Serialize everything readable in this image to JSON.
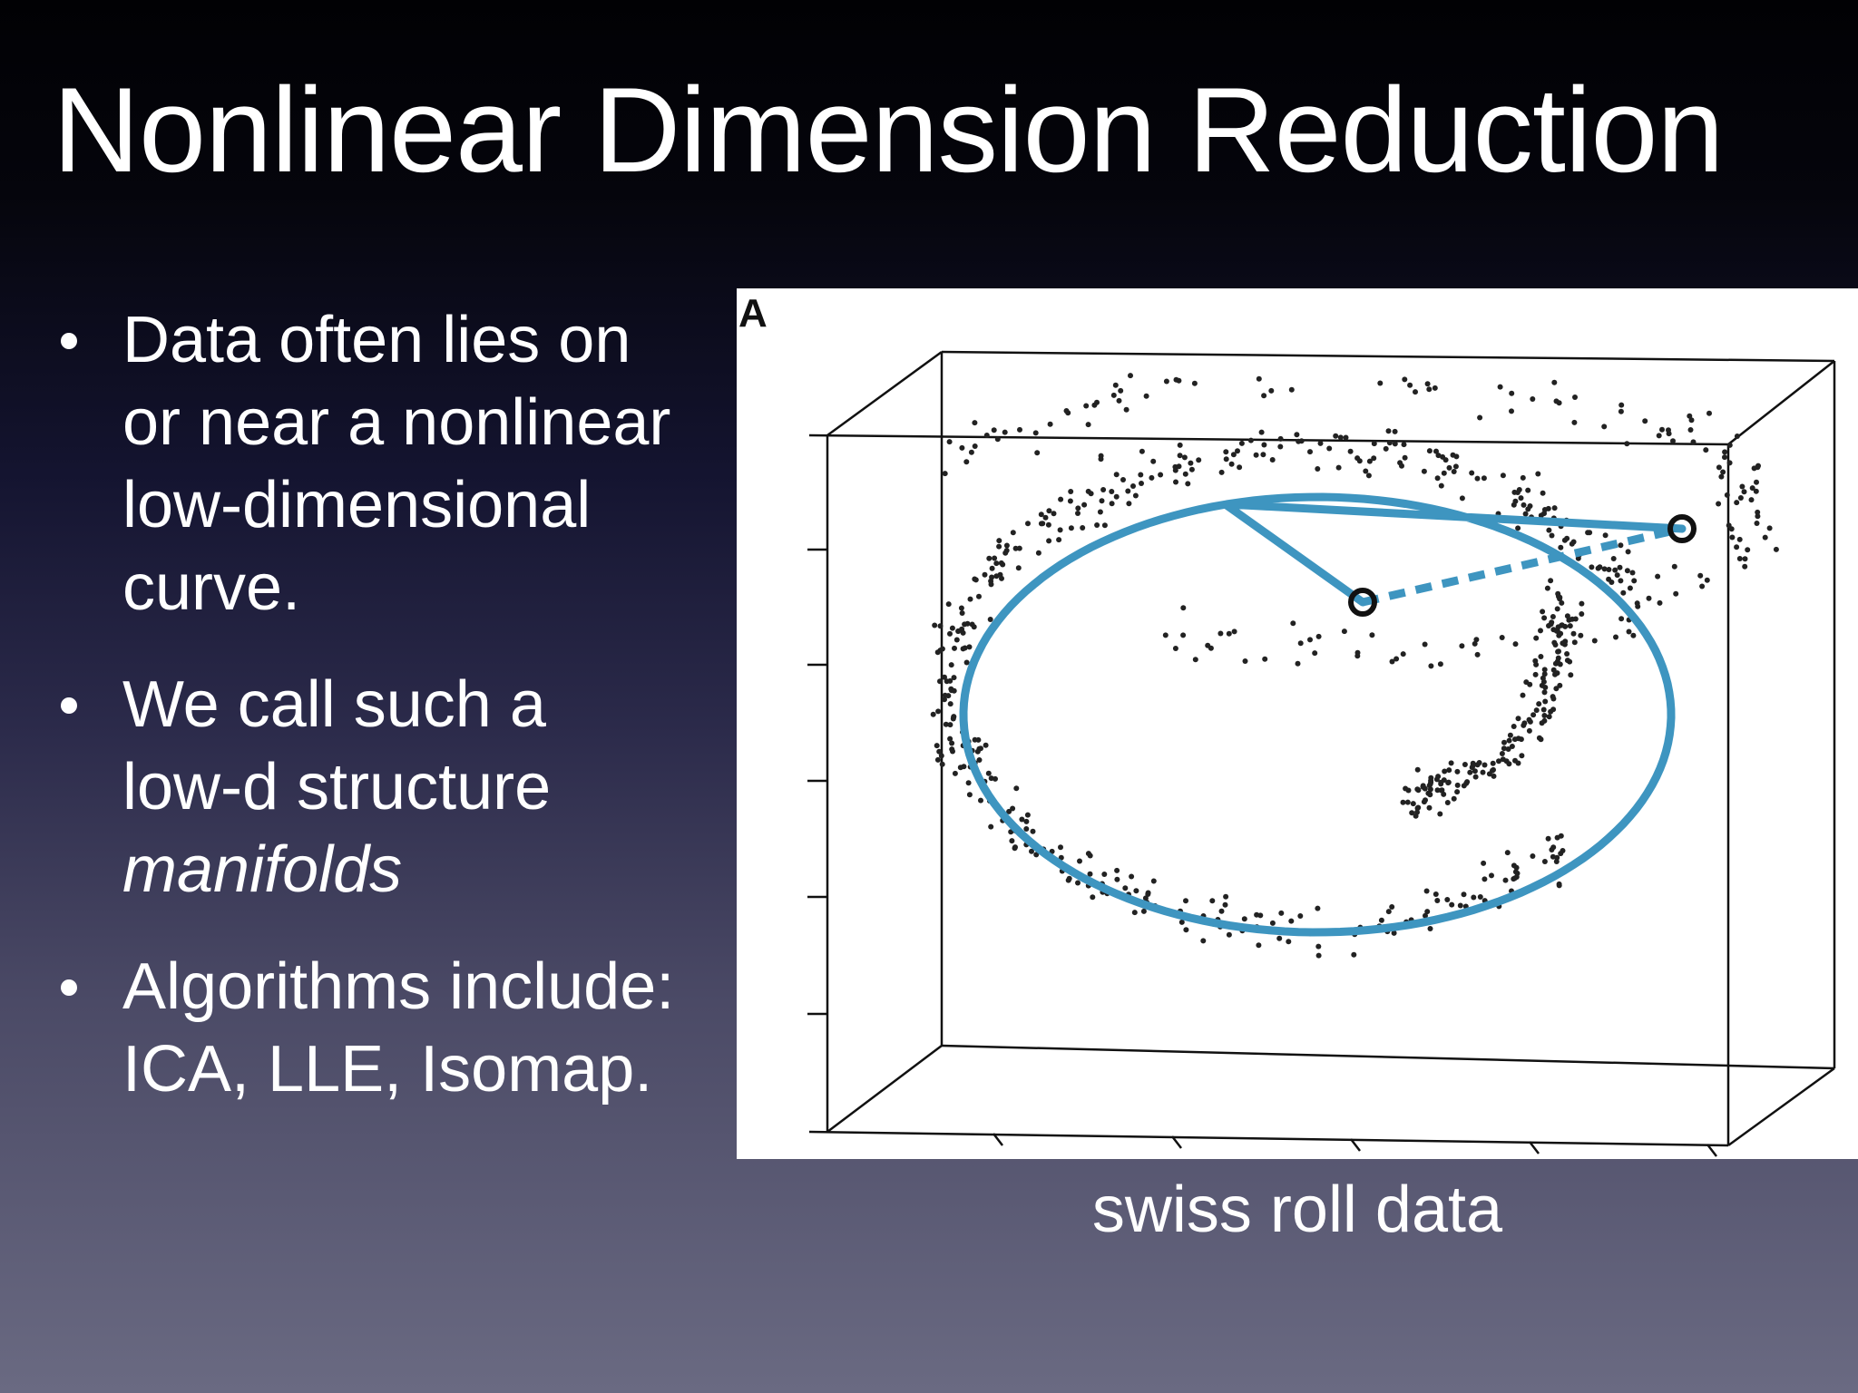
{
  "slide": {
    "title": "Nonlinear Dimension Reduction",
    "bullets": [
      {
        "lines": [
          "Data often lies on",
          "or near a nonlinear",
          "low-dimensional",
          "curve."
        ]
      },
      {
        "lines": [
          "We call such a",
          "low-d structure"
        ],
        "italic_line": "manifolds"
      },
      {
        "lines": [
          "Algorithms include:",
          "ICA, LLE, Isomap."
        ]
      }
    ],
    "figure": {
      "panel_label": "A",
      "caption": "swiss roll data",
      "colors": {
        "curve": "#3e95c0",
        "points": "#222222",
        "box": "#111111",
        "background": "#ffffff"
      }
    }
  }
}
